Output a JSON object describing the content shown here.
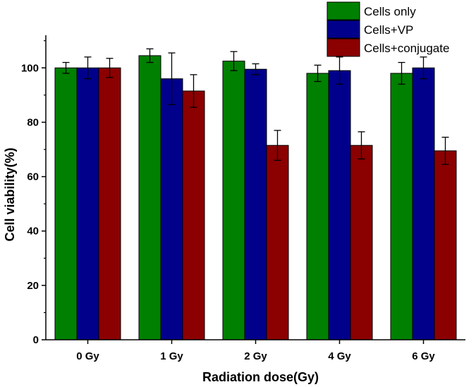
{
  "chart_data": {
    "type": "bar",
    "title": "",
    "xlabel": "Radiation dose(Gy)",
    "ylabel": "Cell viability(%)",
    "categories": [
      "0 Gy",
      "1 Gy",
      "2 Gy",
      "4 Gy",
      "6 Gy"
    ],
    "ylim": [
      0,
      112
    ],
    "yticks": [
      "0",
      "20",
      "40",
      "60",
      "80",
      "100"
    ],
    "legend_position": "top-right",
    "series": [
      {
        "name": "Cells only",
        "color": "#008000",
        "values": [
          100.0,
          104.5,
          102.5,
          98.0,
          98.0
        ],
        "errors": [
          2.0,
          2.5,
          3.5,
          3.0,
          4.0
        ]
      },
      {
        "name": "Cells+VP",
        "color": "#00008b",
        "values": [
          100.0,
          96.0,
          99.5,
          99.0,
          100.0
        ],
        "errors": [
          4.0,
          9.5,
          2.0,
          5.0,
          4.0
        ]
      },
      {
        "name": "Cells+conjugate",
        "color": "#8b0000",
        "values": [
          100.0,
          91.5,
          71.5,
          71.5,
          69.5
        ],
        "errors": [
          3.5,
          6.0,
          5.5,
          5.0,
          5.0
        ]
      }
    ]
  }
}
